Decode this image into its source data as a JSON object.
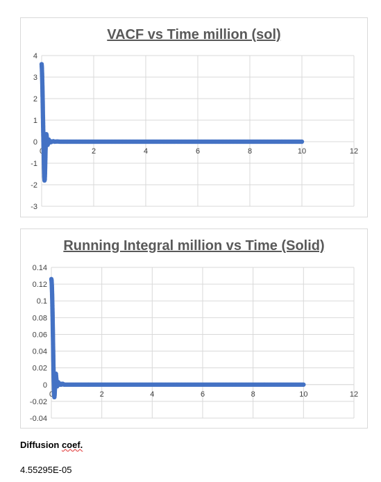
{
  "chart_data": [
    {
      "type": "scatter",
      "title": "VACF vs Time million (sol)",
      "xlabel": "",
      "ylabel": "",
      "xlim": [
        0,
        12
      ],
      "ylim": [
        -3,
        4
      ],
      "xticks": [
        "0",
        "2",
        "4",
        "6",
        "8",
        "10",
        "12"
      ],
      "yticks": [
        "4",
        "3",
        "2",
        "1",
        "0",
        "-1",
        "-2",
        "-3"
      ],
      "grid": true,
      "series": [
        {
          "color": "#4472c4",
          "x": [
            0.0,
            0.01,
            0.02,
            0.03,
            0.04,
            0.05,
            0.06,
            0.07,
            0.08,
            0.09,
            0.1,
            0.11,
            0.12,
            0.13,
            0.14,
            0.15,
            0.16,
            0.17,
            0.18,
            0.19,
            0.2,
            0.21,
            0.22,
            0.23,
            0.24,
            0.25,
            0.26,
            0.27,
            0.28,
            0.29,
            0.3,
            0.32,
            0.34,
            0.36,
            0.38,
            0.4,
            0.45,
            0.5,
            0.6,
            0.7,
            0.8,
            0.9,
            1.0,
            1.5,
            2.0,
            3.0,
            4.0,
            5.0,
            6.0,
            7.0,
            8.0,
            9.0,
            10.0
          ],
          "y": [
            3.6,
            3.4,
            3.0,
            2.5,
            1.9,
            1.2,
            0.6,
            0.0,
            -0.6,
            -1.2,
            -1.6,
            -1.8,
            -1.75,
            -1.4,
            -0.9,
            -0.4,
            0.0,
            0.25,
            0.35,
            0.3,
            0.15,
            0.0,
            -0.1,
            -0.15,
            -0.1,
            0.0,
            0.08,
            0.1,
            0.06,
            0.0,
            -0.04,
            0.03,
            0.0,
            -0.02,
            0.01,
            0.0,
            0.02,
            0.0,
            0.01,
            0.0,
            0.0,
            0.0,
            0.0,
            0.0,
            0.0,
            0.0,
            0.0,
            0.0,
            0.0,
            0.0,
            0.0,
            0.0,
            0.0
          ]
        }
      ]
    },
    {
      "type": "scatter",
      "title": "Running Integral million vs Time (Solid)",
      "xlabel": "",
      "ylabel": "",
      "xlim": [
        0,
        12
      ],
      "ylim": [
        -0.04,
        0.14
      ],
      "xticks": [
        "0",
        "2",
        "4",
        "6",
        "8",
        "10",
        "12"
      ],
      "yticks": [
        "0.14",
        "0.12",
        "0.1",
        "0.08",
        "0.06",
        "0.04",
        "0.02",
        "0",
        "-0.02",
        "-0.04"
      ],
      "grid": true,
      "series": [
        {
          "color": "#4472c4",
          "x": [
            0.0,
            0.01,
            0.02,
            0.03,
            0.04,
            0.05,
            0.06,
            0.07,
            0.08,
            0.09,
            0.1,
            0.11,
            0.12,
            0.13,
            0.14,
            0.15,
            0.16,
            0.17,
            0.18,
            0.19,
            0.2,
            0.21,
            0.22,
            0.23,
            0.24,
            0.25,
            0.26,
            0.27,
            0.28,
            0.29,
            0.3,
            0.32,
            0.34,
            0.36,
            0.38,
            0.4,
            0.45,
            0.5,
            0.6,
            0.7,
            0.8,
            0.9,
            1.0,
            1.5,
            2.0,
            3.0,
            4.0,
            5.0,
            6.0,
            7.0,
            8.0,
            9.0,
            10.0
          ],
          "y": [
            0.126,
            0.124,
            0.118,
            0.108,
            0.095,
            0.08,
            0.062,
            0.044,
            0.026,
            0.01,
            -0.003,
            -0.012,
            -0.015,
            -0.012,
            -0.006,
            0.0,
            0.006,
            0.012,
            0.013,
            0.01,
            0.006,
            0.002,
            0.0,
            -0.002,
            -0.001,
            0.0,
            0.002,
            0.003,
            0.002,
            0.001,
            0.0,
            0.001,
            0.0,
            0.0,
            0.001,
            0.0,
            0.001,
            0.0,
            0.0,
            0.0,
            0.0,
            0.0,
            0.0,
            0.0,
            0.0,
            0.0,
            0.0,
            0.0,
            0.0,
            0.0,
            0.0,
            0.0,
            0.0
          ]
        }
      ]
    }
  ],
  "diffusion": {
    "label_word1": "Diffusion",
    "label_word2": "coef.",
    "value": "4.55295E-05"
  }
}
